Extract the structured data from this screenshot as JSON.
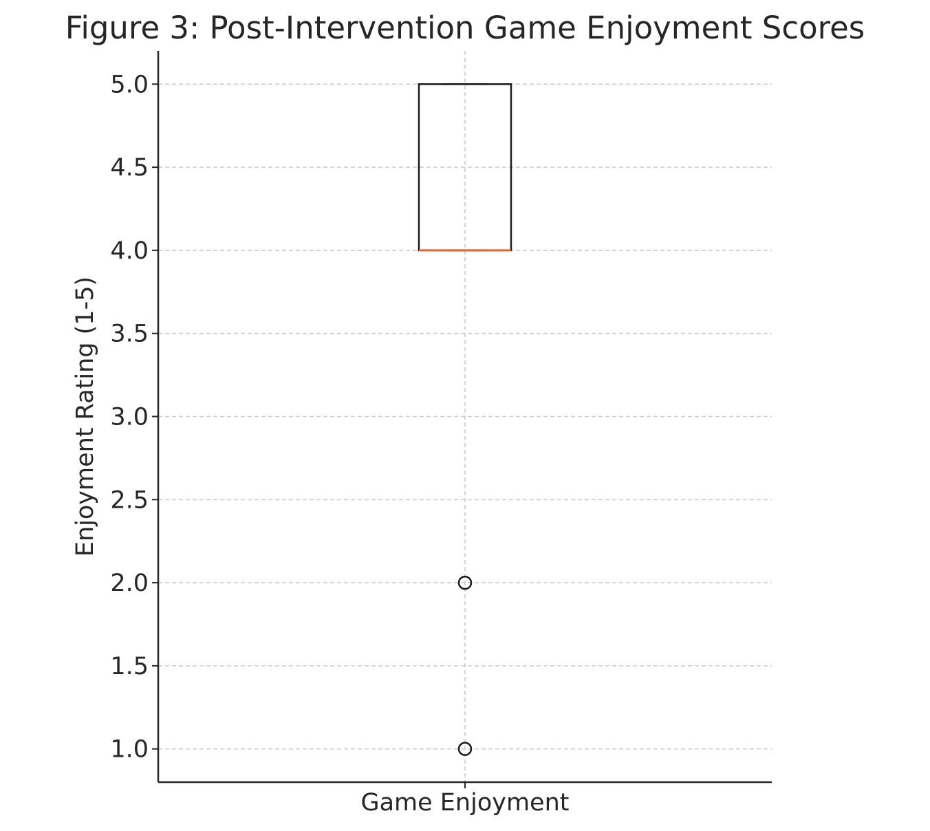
{
  "chart_data": {
    "type": "box",
    "title": "Figure 3: Post-Intervention Game Enjoyment Scores",
    "xlabel": "",
    "ylabel": "Enjoyment Rating (1-5)",
    "categories": [
      "Game Enjoyment"
    ],
    "ylim": [
      0.8,
      5.2
    ],
    "yticks": [
      "1.0",
      "1.5",
      "2.0",
      "2.5",
      "3.0",
      "3.5",
      "4.0",
      "4.5",
      "5.0"
    ],
    "grid": true,
    "boxes": [
      {
        "category": "Game Enjoyment",
        "q1": 4.0,
        "median": 4.0,
        "q3": 5.0,
        "whisker_low": 4.0,
        "whisker_high": 5.0,
        "outliers": [
          2.0,
          1.0
        ]
      }
    ],
    "colors": {
      "median": "#e0662b",
      "box": "#1a1a1a",
      "grid": "#cccccc"
    }
  }
}
